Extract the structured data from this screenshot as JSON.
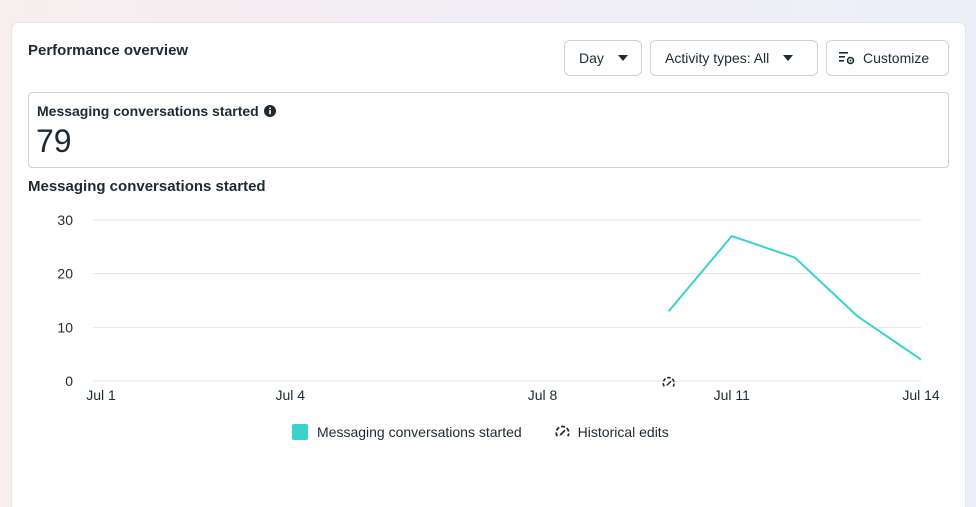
{
  "header": {
    "title": "Performance overview",
    "day_label": "Day",
    "activity_label": "Activity types: All",
    "customize_label": "Customize"
  },
  "metric": {
    "label": "Messaging conversations started",
    "value": "79"
  },
  "colors": {
    "series": "#3ad1cd",
    "grid": "#e4e6eb",
    "text": "#1c2b33"
  },
  "chart_data": {
    "type": "line",
    "title": "Messaging conversations started",
    "xlabel": "",
    "ylabel": "",
    "ylim": [
      0,
      30
    ],
    "yticks": [
      0,
      10,
      20,
      30
    ],
    "xlim": [
      "Jul 1",
      "Jul 14"
    ],
    "xticks": [
      "Jul 1",
      "Jul 4",
      "Jul 8",
      "Jul 11",
      "Jul 14"
    ],
    "grid": true,
    "legend": "bottom",
    "series": [
      {
        "name": "Messaging conversations started",
        "x": [
          "Jul 10",
          "Jul 11",
          "Jul 12",
          "Jul 13",
          "Jul 14"
        ],
        "y": [
          13,
          27,
          23,
          12,
          4
        ]
      }
    ],
    "annotations": [
      {
        "icon": "historical-edit-icon",
        "x": "Jul 10"
      }
    ],
    "legend_entries": [
      "Messaging conversations started",
      "Historical edits"
    ]
  }
}
